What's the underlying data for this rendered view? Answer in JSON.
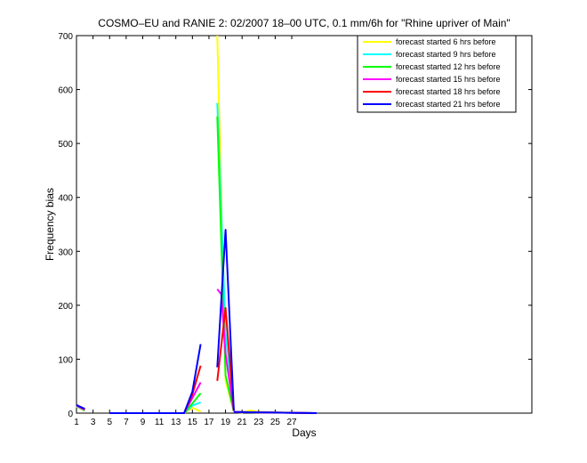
{
  "chart_data": {
    "type": "line",
    "title": "COSMO–EU and RANIE 2: 02/2007 18–00 UTC, 0.1 mm/6h for \"Rhine upriver of Main\"",
    "xlabel": "Days",
    "ylabel": "Frequency bias",
    "xlim": [
      1,
      56
    ],
    "ylim": [
      0,
      700
    ],
    "xticks": [
      1,
      3,
      5,
      7,
      9,
      11,
      13,
      15,
      17,
      19,
      21,
      23,
      25,
      27
    ],
    "xtick_labels": [
      "1",
      "3",
      "5",
      "7",
      "9",
      "11",
      "13",
      "15",
      "17",
      "19",
      "21",
      "23",
      "25",
      "27"
    ],
    "yticks": [
      0,
      100,
      200,
      300,
      400,
      500,
      600,
      700
    ],
    "ytick_labels": [
      "0",
      "100",
      "200",
      "300",
      "400",
      "500",
      "600",
      "700"
    ],
    "grid": false,
    "legend_position": "top-right",
    "series": [
      {
        "name": "forecast started 6 hrs before",
        "color": "#ffff00",
        "segments": [
          [
            [
              1,
              12
            ],
            [
              2,
              4
            ]
          ],
          [
            [
              5,
              0
            ],
            [
              14,
              0
            ],
            [
              15,
              10
            ],
            [
              16,
              3
            ]
          ],
          [
            [
              18,
              700
            ],
            [
              19,
              60
            ],
            [
              20,
              3
            ]
          ],
          [
            [
              20,
              2
            ],
            [
              21,
              1
            ],
            [
              22,
              5
            ],
            [
              23,
              2
            ],
            [
              30,
              0
            ]
          ]
        ]
      },
      {
        "name": "forecast started 9 hrs before",
        "color": "#00ffff",
        "segments": [
          [
            [
              1,
              13
            ],
            [
              2,
              5
            ]
          ],
          [
            [
              5,
              0
            ],
            [
              14,
              0
            ],
            [
              15,
              14
            ],
            [
              16,
              20
            ]
          ],
          [
            [
              18,
              575
            ],
            [
              19,
              150
            ],
            [
              20,
              4
            ]
          ],
          [
            [
              20,
              2
            ],
            [
              30,
              0
            ]
          ]
        ]
      },
      {
        "name": "forecast started 12 hrs before",
        "color": "#00ff00",
        "segments": [
          [
            [
              1,
              14
            ],
            [
              2,
              6
            ]
          ],
          [
            [
              5,
              0
            ],
            [
              14,
              0
            ],
            [
              15,
              18
            ],
            [
              16,
              37
            ]
          ],
          [
            [
              18,
              550
            ],
            [
              19,
              70
            ],
            [
              20,
              3
            ]
          ],
          [
            [
              20,
              2
            ],
            [
              30,
              0
            ]
          ]
        ]
      },
      {
        "name": "forecast started 15 hrs before",
        "color": "#ff00ff",
        "segments": [
          [
            [
              1,
              14
            ],
            [
              2,
              6
            ]
          ],
          [
            [
              5,
              0
            ],
            [
              14,
              0
            ],
            [
              15,
              28
            ],
            [
              16,
              57
            ]
          ],
          [
            [
              18,
              230
            ],
            [
              18.5,
              220
            ],
            [
              19,
              110
            ],
            [
              20,
              4
            ]
          ],
          [
            [
              20,
              2
            ],
            [
              30,
              0
            ]
          ]
        ]
      },
      {
        "name": "forecast started 18 hrs before",
        "color": "#ff0000",
        "segments": [
          [
            [
              1,
              15
            ],
            [
              2,
              7
            ]
          ],
          [
            [
              5,
              0
            ],
            [
              14,
              0
            ],
            [
              15,
              35
            ],
            [
              16,
              88
            ]
          ],
          [
            [
              18,
              60
            ],
            [
              19,
              195
            ],
            [
              20,
              5
            ]
          ],
          [
            [
              20,
              2
            ],
            [
              30,
              0
            ]
          ]
        ]
      },
      {
        "name": "forecast started 21 hrs before",
        "color": "#0000ff",
        "segments": [
          [
            [
              1,
              15
            ],
            [
              2,
              8
            ]
          ],
          [
            [
              5,
              0
            ],
            [
              14,
              0
            ],
            [
              15,
              40
            ],
            [
              16,
              128
            ]
          ],
          [
            [
              18,
              85
            ],
            [
              19,
              340
            ],
            [
              20,
              5
            ]
          ],
          [
            [
              20,
              2
            ],
            [
              30,
              0
            ]
          ]
        ]
      }
    ]
  }
}
